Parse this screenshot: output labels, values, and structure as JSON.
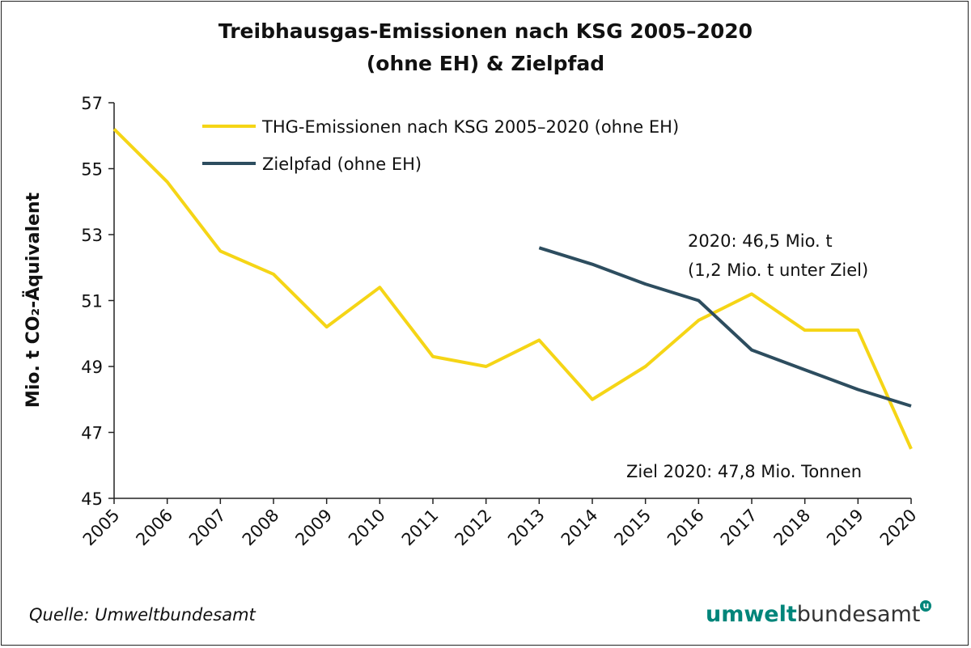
{
  "chart_data": {
    "type": "line",
    "title_lines": [
      "Treibhausgas-Emissionen nach KSG 2005–2020",
      "(ohne EH) & Zielpfad"
    ],
    "xlabel": "",
    "ylabel": "Mio. t CO₂-Äquivalent",
    "ylim": [
      45,
      57
    ],
    "yticks": [
      45,
      47,
      49,
      51,
      53,
      55,
      57
    ],
    "categories": [
      "2005",
      "2006",
      "2007",
      "2008",
      "2009",
      "2010",
      "2011",
      "2012",
      "2013",
      "2014",
      "2015",
      "2016",
      "2017",
      "2018",
      "2019",
      "2020"
    ],
    "grid": false,
    "legend_position": "top-center",
    "series": [
      {
        "name": "THG-Emissionen nach KSG 2005–2020 (ohne EH)",
        "color": "#f5d516",
        "values": [
          56.2,
          54.6,
          52.5,
          51.8,
          50.2,
          51.4,
          49.3,
          49.0,
          49.8,
          48.0,
          49.0,
          50.4,
          51.2,
          50.1,
          50.1,
          46.5
        ]
      },
      {
        "name": "Zielpfad (ohne EH)",
        "color": "#2d4d5f",
        "values": [
          null,
          null,
          null,
          null,
          null,
          null,
          null,
          null,
          52.6,
          52.1,
          51.5,
          51.0,
          49.5,
          48.9,
          48.3,
          47.8
        ]
      }
    ],
    "annotations": [
      {
        "lines": [
          "2020: 46,5 Mio. t",
          "(1,2 Mio. t unter Ziel)"
        ]
      },
      {
        "lines": [
          "Ziel 2020:  47,8 Mio. Tonnen"
        ]
      }
    ]
  },
  "footer": {
    "source": "Quelle: Umweltbundesamt",
    "logo_text": "umweltbundesamt"
  }
}
